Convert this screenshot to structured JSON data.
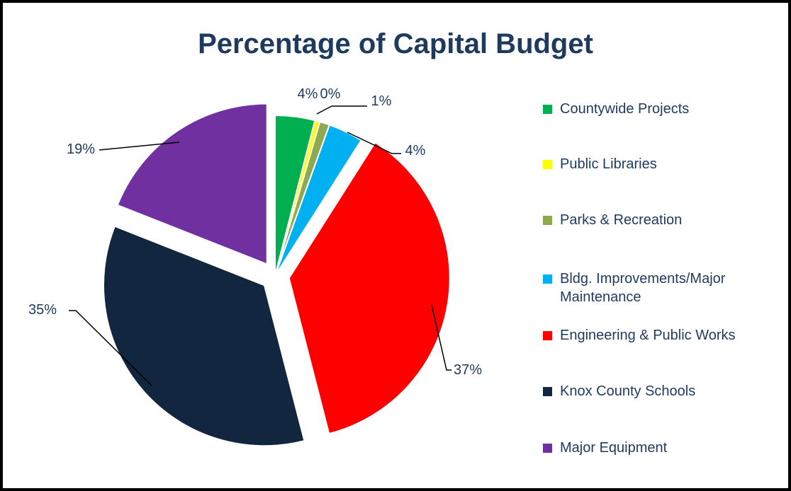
{
  "chart_data": {
    "type": "pie",
    "title": "Percentage of Capital Budget",
    "legend_position": "right",
    "slices": [
      {
        "name": "Countywide Projects",
        "value": 4,
        "label": "4%",
        "color": "#00b050",
        "exploded": false
      },
      {
        "name": "Public Libraries",
        "value": 0.5,
        "label": "0%",
        "color": "#ffff00",
        "exploded": false
      },
      {
        "name": "Parks & Recreation",
        "value": 1,
        "label": "1%",
        "color": "#8faa4e",
        "exploded": false
      },
      {
        "name": "Bldg. Improvements/Major Maintenance",
        "value": 3.5,
        "label": "4%",
        "color": "#00b0f0",
        "exploded": false
      },
      {
        "name": "Engineering & Public Works",
        "value": 37,
        "label": "37%",
        "color": "#ff0000",
        "exploded": true
      },
      {
        "name": "Knox County Schools",
        "value": 35,
        "label": "35%",
        "color": "#13263f",
        "exploded": true
      },
      {
        "name": "Major Equipment",
        "value": 19,
        "label": "19%",
        "color": "#7030a0",
        "exploded": true
      }
    ]
  }
}
